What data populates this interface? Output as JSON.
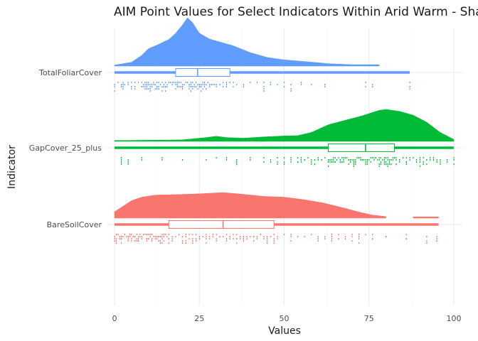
{
  "chart_data": {
    "type": "raincloud",
    "title": "AIM Point Values for Select Indicators Within Arid Warm - Shallo",
    "xlabel": "Values",
    "ylabel": "Indicator",
    "xlim": [
      0,
      100
    ],
    "x_ticks": [
      0,
      25,
      50,
      75,
      100
    ],
    "grid": true,
    "legend": "none",
    "series": [
      {
        "name": "TotalFoliarCover",
        "color": "#619CFF",
        "range": [
          0,
          87
        ],
        "box": {
          "q1": 18,
          "median": 24.5,
          "q3": 34
        },
        "density": [
          [
            0,
            0.02
          ],
          [
            5,
            0.08
          ],
          [
            8,
            0.22
          ],
          [
            10,
            0.36
          ],
          [
            13,
            0.45
          ],
          [
            16,
            0.55
          ],
          [
            18,
            0.68
          ],
          [
            20,
            0.85
          ],
          [
            21.5,
            1.0
          ],
          [
            23,
            0.9
          ],
          [
            25,
            0.68
          ],
          [
            28,
            0.56
          ],
          [
            31,
            0.5
          ],
          [
            35,
            0.42
          ],
          [
            40,
            0.28
          ],
          [
            45,
            0.18
          ],
          [
            50,
            0.13
          ],
          [
            55,
            0.1
          ],
          [
            60,
            0.07
          ],
          [
            63,
            0.05
          ],
          [
            70,
            0.03
          ],
          [
            78,
            0.03
          ]
        ],
        "points": [
          0,
          1,
          2,
          2.5,
          3,
          4,
          5,
          6,
          7,
          8,
          8.5,
          9,
          9.5,
          10,
          10.5,
          11,
          11.5,
          12,
          12.5,
          13,
          13.5,
          14,
          14.5,
          15,
          15.5,
          16,
          16.5,
          17,
          17.5,
          18,
          18.5,
          19,
          19.5,
          20,
          20.5,
          21,
          21.5,
          22,
          22.5,
          23,
          23.5,
          24,
          24.5,
          25,
          25.5,
          26,
          26.5,
          27,
          27.5,
          28,
          28.5,
          29,
          29.5,
          30,
          31,
          32,
          33,
          34,
          35,
          36,
          38,
          40,
          42,
          44,
          46,
          48,
          50,
          52,
          55,
          58,
          62,
          74,
          76,
          87
        ]
      },
      {
        "name": "GapCover_25_plus",
        "color": "#00BA38",
        "range": [
          0,
          100
        ],
        "box": {
          "q1": 63,
          "median": 74,
          "q3": 82.5
        },
        "density": [
          [
            0,
            0.03
          ],
          [
            15,
            0.04
          ],
          [
            20,
            0.05
          ],
          [
            27,
            0.12
          ],
          [
            30,
            0.16
          ],
          [
            33,
            0.12
          ],
          [
            38,
            0.1
          ],
          [
            44,
            0.14
          ],
          [
            50,
            0.17
          ],
          [
            54,
            0.18
          ],
          [
            58,
            0.28
          ],
          [
            63,
            0.52
          ],
          [
            68,
            0.66
          ],
          [
            73,
            0.8
          ],
          [
            78,
            0.97
          ],
          [
            80,
            1.0
          ],
          [
            84,
            0.94
          ],
          [
            88,
            0.82
          ],
          [
            92,
            0.6
          ],
          [
            96,
            0.28
          ],
          [
            100,
            0.06
          ]
        ],
        "points": [
          2,
          4,
          8,
          14,
          20,
          27,
          30,
          33,
          36,
          40,
          44,
          46,
          48,
          50,
          52,
          54,
          55,
          56,
          57,
          58,
          59,
          60,
          61,
          62,
          63,
          63.5,
          64,
          64.5,
          65,
          65.5,
          66,
          66.5,
          67,
          67.5,
          68,
          68.5,
          69,
          69.5,
          70,
          70.5,
          71,
          71.5,
          72,
          72.5,
          73,
          73.5,
          74,
          74.5,
          75,
          75.5,
          76,
          76.5,
          77,
          77.5,
          78,
          78.5,
          79,
          79.5,
          80,
          80.5,
          81,
          81.5,
          82,
          82.5,
          83,
          84,
          85,
          86,
          87,
          88,
          89,
          90,
          91,
          92,
          93,
          94,
          95,
          96,
          98,
          100
        ]
      },
      {
        "name": "BareSoilCover",
        "color": "#F8766D",
        "range": [
          0,
          95.5
        ],
        "box": {
          "q1": 16,
          "median": 32,
          "q3": 47
        },
        "density": [
          [
            0,
            0.25
          ],
          [
            2,
            0.42
          ],
          [
            5,
            0.68
          ],
          [
            8,
            0.82
          ],
          [
            12,
            0.9
          ],
          [
            18,
            0.92
          ],
          [
            25,
            0.95
          ],
          [
            32,
            1.0
          ],
          [
            38,
            0.93
          ],
          [
            44,
            0.85
          ],
          [
            50,
            0.82
          ],
          [
            56,
            0.72
          ],
          [
            62,
            0.58
          ],
          [
            68,
            0.38
          ],
          [
            72,
            0.24
          ],
          [
            76,
            0.12
          ],
          [
            80,
            0.06
          ]
        ],
        "density_tail": [
          [
            88,
            0.05
          ],
          [
            95.5,
            0.05
          ]
        ],
        "points": [
          0,
          0.5,
          1,
          1.5,
          2,
          2.5,
          3,
          3.5,
          4,
          4.5,
          5,
          5.5,
          6,
          6.5,
          7,
          7.5,
          8,
          8.5,
          9,
          9.5,
          10,
          10.5,
          11,
          11.5,
          12,
          12.5,
          13,
          13.5,
          14,
          14.5,
          15,
          15.5,
          16,
          17,
          18,
          19,
          20,
          21,
          22,
          23,
          24,
          25,
          26,
          27,
          28,
          29,
          30,
          31,
          32,
          33,
          34,
          35,
          36,
          37,
          38,
          39,
          40,
          41,
          42,
          43,
          44,
          45,
          46,
          47,
          48,
          50,
          52,
          54,
          56,
          58,
          60,
          62,
          64,
          66,
          68,
          70,
          72,
          74,
          76,
          80,
          86,
          92,
          95
        ]
      }
    ]
  }
}
